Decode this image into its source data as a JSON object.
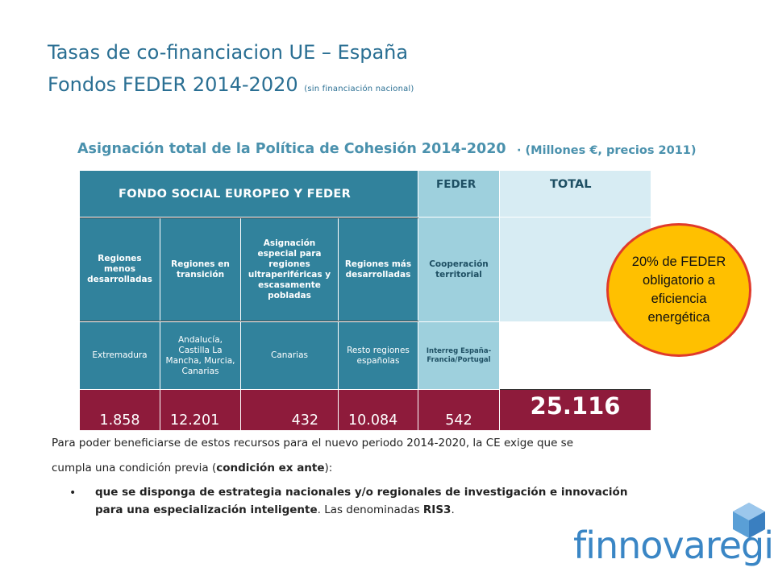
{
  "slide": {
    "title_line1": "Tasas de co-financiacion UE – España",
    "title_line2": "Fondos FEDER 2014-2020",
    "title_note": "(sin financiación nacional)"
  },
  "table": {
    "heading": "Asignación total de la Política de Cohesión 2014-2020",
    "heading_note": "· (Millones €, precios 2011)",
    "header_fse_feder": "FONDO SOCIAL EUROPEO Y FEDER",
    "header_feder": "FEDER",
    "header_total": "TOTAL",
    "categories": [
      "Regiones menos desarrolladas",
      "Regiones en transición",
      "Asignación especial para regiones ultraperiféricas y escasamente pobladas",
      "Regiones más desarrolladas",
      "Cooperación territorial"
    ],
    "regions": [
      "Extremadura",
      "Andalucía, Castilla La Mancha, Murcia, Canarias",
      "Canarias",
      "Resto regiones españolas",
      "Interreg España-Francia/Portugal"
    ],
    "values": [
      "1.858",
      "12.201",
      "432",
      "10.084",
      "542"
    ],
    "total": "25.116"
  },
  "callout": {
    "text": "20% de FEDER obligatorio a eficiencia energética"
  },
  "paragraph": {
    "line1": "Para poder beneficiarse de estos recursos para el nuevo periodo 2014-2020, la CE exige que se",
    "line2_pre": "cumpla una condición previa (",
    "line2_bold": "condición ex ante",
    "line2_post": "):",
    "bullet_bold1": "que se disponga de estrategia nacionales y/o regionales de investigación e innovación",
    "bullet_bold2": "para una especialización inteligente",
    "bullet_rest": ". Las denominadas ",
    "bullet_bold3": "RIS3",
    "bullet_end": "."
  },
  "logo": {
    "text": "finnovaregio",
    "color": "#3a86c5"
  },
  "colors": {
    "title": "#2a6f93",
    "teal": "#31829c",
    "feder": "#9ed0dd",
    "total_bg": "#d7ecf3",
    "values_row": "#8e1b3b",
    "callout_fill": "#ffc000",
    "callout_border": "#e03a2b"
  }
}
